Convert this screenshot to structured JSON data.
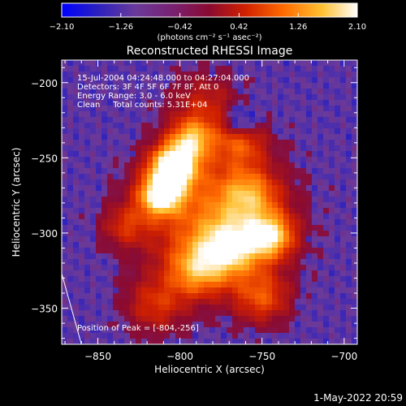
{
  "chart_data": {
    "type": "heatmap",
    "title": "Reconstructed RHESSI Image",
    "xlabel": "Heliocentric X (arcsec)",
    "ylabel": "Heliocentric Y (arcsec)",
    "xlim": [
      -872,
      -692
    ],
    "ylim": [
      -374,
      -185
    ],
    "x_ticks": [
      -850,
      -800,
      -750,
      -700
    ],
    "y_ticks": [
      -200,
      -250,
      -300,
      -350
    ],
    "x_tick_labels": [
      "−850",
      "−800",
      "−750",
      "−700"
    ],
    "y_tick_labels": [
      "−200",
      "−250",
      "−300",
      "−350"
    ],
    "colorbar": {
      "range": [
        -2.1,
        2.1
      ],
      "ticks": [
        -2.1,
        -1.26,
        -0.42,
        0.42,
        1.26,
        2.1
      ],
      "tick_labels": [
        "−2.10",
        "−1.26",
        "−0.42",
        "0.42",
        "1.26",
        "2.10"
      ],
      "unit_label": "(photons cm⁻² s⁻¹ asec⁻²)"
    },
    "info_lines": [
      "15-Jul-2004 04:24:48.000 to 04:27:04.000",
      "Detectors: 3F 4F 5F 6F 7F 8F, Att 0",
      "Energy Range: 3.0 - 6.0 keV",
      "Clean     Total counts: 5.31E+04"
    ],
    "peak_label": "Position of Peak = [-804,-256]",
    "peak": [
      -804,
      -256
    ],
    "blobs": [
      {
        "x": -804,
        "y": -256,
        "sigma": 10,
        "amp": 1.25
      },
      {
        "x": -812,
        "y": -275,
        "sigma": 9,
        "amp": 1.05
      },
      {
        "x": -793,
        "y": -238,
        "sigma": 9,
        "amp": 0.75
      },
      {
        "x": -770,
        "y": -310,
        "sigma": 13,
        "amp": 0.8
      },
      {
        "x": -745,
        "y": -302,
        "sigma": 10,
        "amp": 0.85
      },
      {
        "x": -790,
        "y": -325,
        "sigma": 12,
        "amp": 0.6
      },
      {
        "x": -758,
        "y": -275,
        "sigma": 12,
        "amp": 0.55
      },
      {
        "x": -763,
        "y": -240,
        "sigma": 11,
        "amp": 0.45
      },
      {
        "x": -750,
        "y": -343,
        "sigma": 12,
        "amp": 0.5
      },
      {
        "x": -815,
        "y": -348,
        "sigma": 13,
        "amp": 0.4
      },
      {
        "x": -785,
        "y": -215,
        "sigma": 15,
        "amp": 0.35
      },
      {
        "x": -833,
        "y": -295,
        "sigma": 10,
        "amp": 0.35
      },
      {
        "x": -780,
        "y": -290,
        "sigma": 30,
        "amp": 0.6
      }
    ],
    "dark_spot": {
      "x": -763,
      "y": -225,
      "sigma": 7,
      "amp": -0.45
    },
    "limb_line": [
      [
        -872,
        -327
      ],
      [
        -860,
        -374
      ]
    ],
    "colors": {
      "background": "#000000",
      "text": "#ffffff",
      "colormap": [
        "#0000ff",
        "#3a1a9c",
        "#6a3a9a",
        "#5a2a78",
        "#8a1a4a",
        "#c02010",
        "#f05a00",
        "#ffb020",
        "#ffffa0",
        "#ffffff"
      ]
    }
  },
  "footer": {
    "timestamp": "1-May-2022 20:59"
  }
}
